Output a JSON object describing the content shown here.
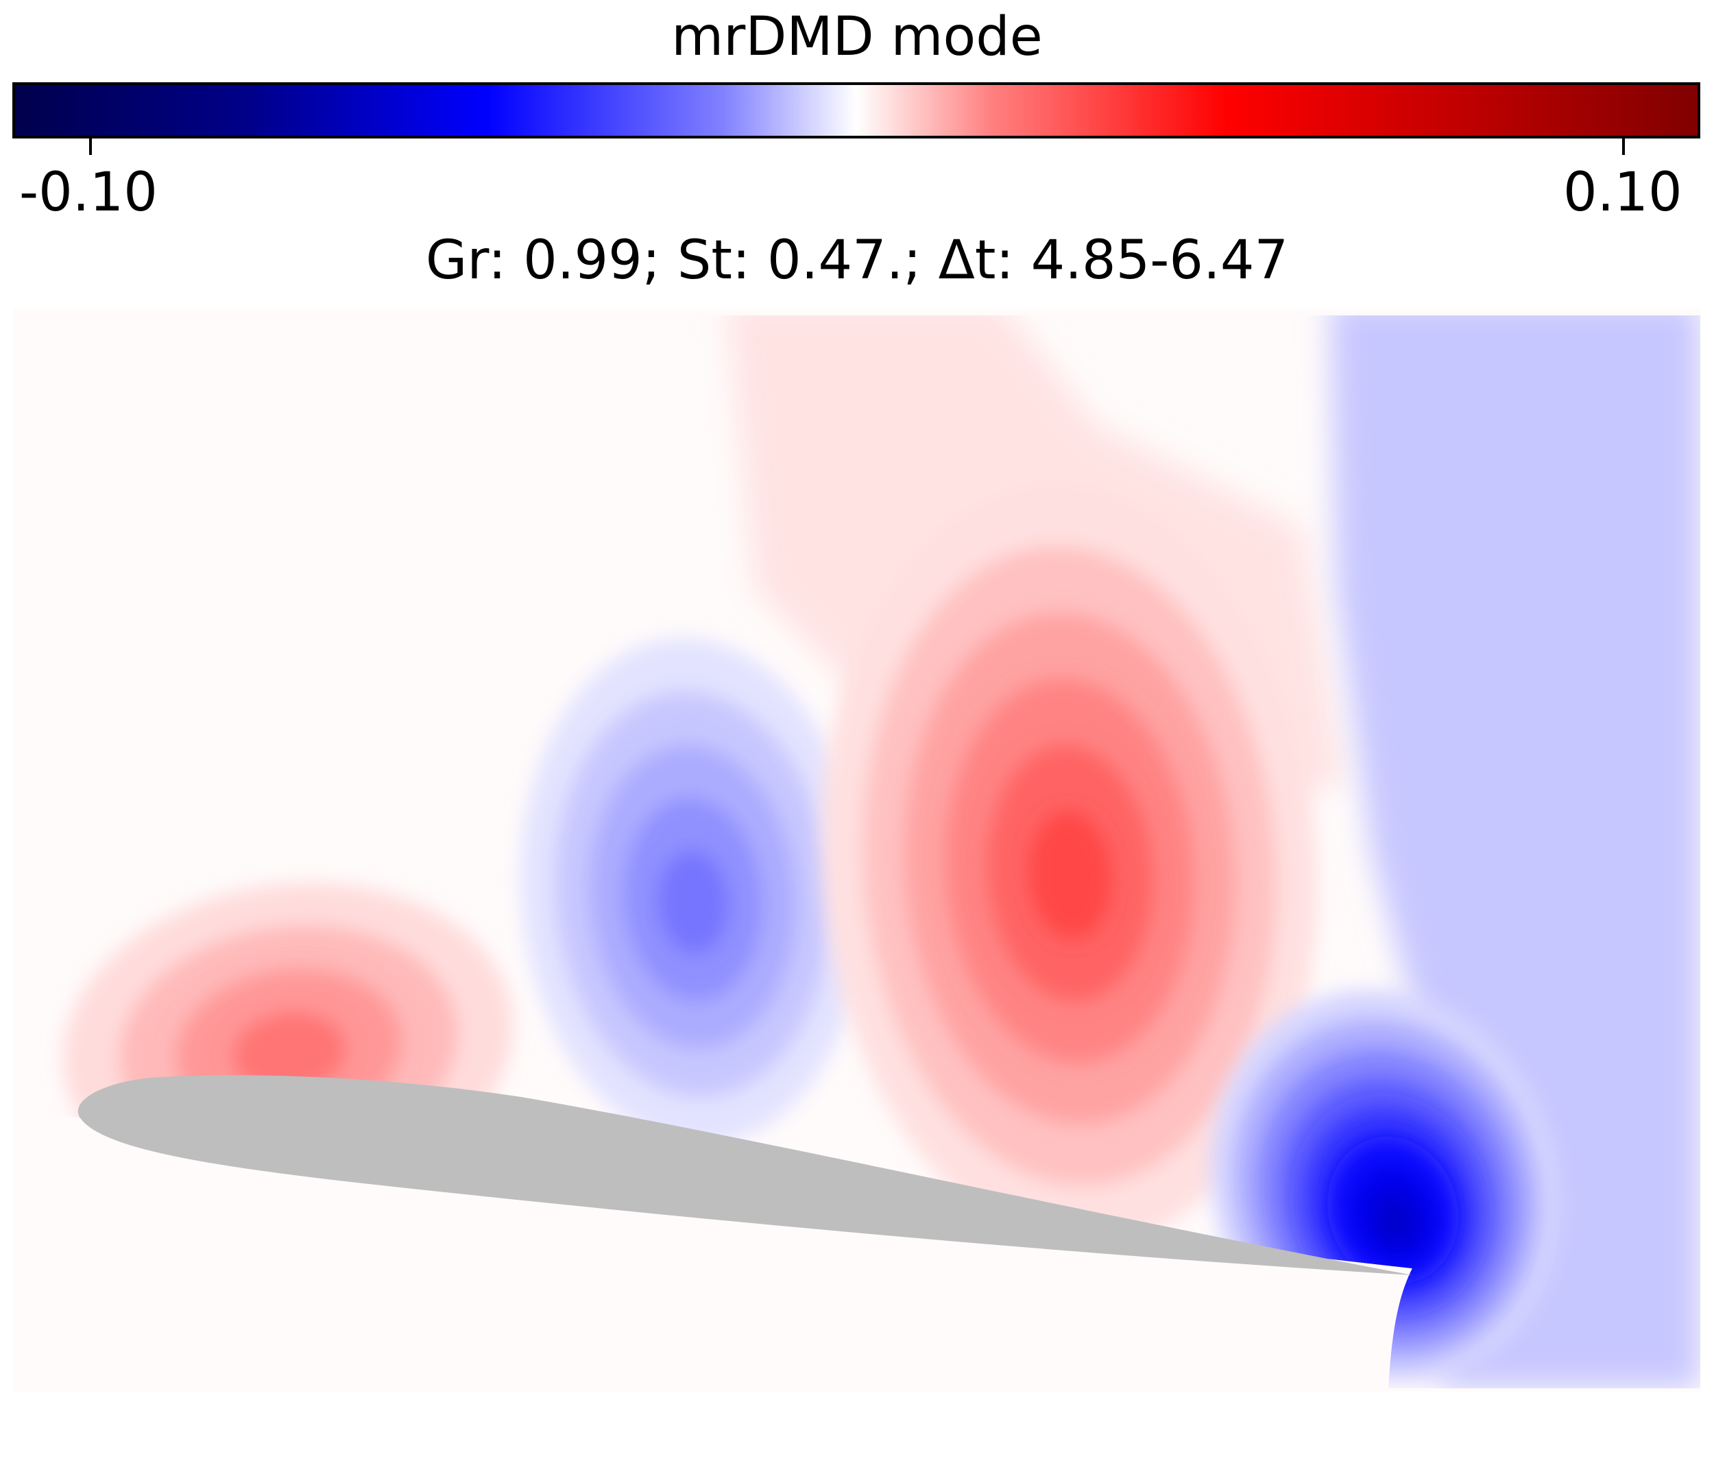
{
  "chart_data": {
    "type": "heatmap",
    "title": "Gr: 0.99; St: 0.47.; Δt: 4.85-6.47",
    "colorbar": {
      "label": "mrDMD mode",
      "range": [
        -0.11,
        0.11
      ],
      "ticks": [
        -0.1,
        0.1
      ],
      "tick_labels": [
        "-0.10",
        "0.10"
      ],
      "colormap": "seismic",
      "colors": [
        "#00004d",
        "#0000ff",
        "#ffffff",
        "#ff0000",
        "#800000"
      ]
    },
    "body_color": "#bebebe",
    "structures": [
      {
        "sign": "positive",
        "peak": 0.03
      },
      {
        "sign": "negative",
        "peak": -0.03
      },
      {
        "sign": "positive",
        "peak": 0.04
      },
      {
        "sign": "negative",
        "peak": -0.07
      }
    ]
  }
}
